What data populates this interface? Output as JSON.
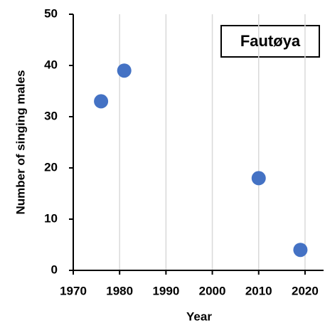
{
  "chart_data": {
    "type": "scatter",
    "annotation": "Fautøya",
    "x_label": "Year",
    "y_label": "Number of singing males",
    "series": [
      {
        "color": "#4472c4",
        "x": [
          1976,
          1981,
          2010,
          2019
        ],
        "values": [
          33,
          39,
          18,
          4
        ]
      }
    ],
    "xlim": [
      1970,
      2024
    ],
    "xticks": [
      1970,
      1980,
      1990,
      2000,
      2010,
      2020
    ],
    "ylim": [
      0,
      50
    ],
    "yticks": [
      0,
      10,
      20,
      30,
      40,
      50
    ],
    "grid_x": true
  }
}
